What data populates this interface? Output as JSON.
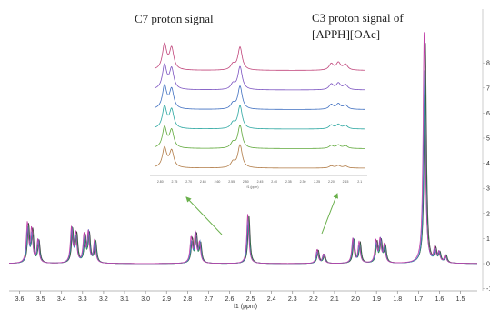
{
  "chart_data": {
    "type": "line",
    "title": "",
    "xlabel": "f1 (ppm)",
    "ylabel": "",
    "x_axis": {
      "min": 1.42,
      "max": 3.65,
      "reversed": true,
      "ticks": [
        "3.6",
        "3.5",
        "3.4",
        "3.3",
        "3.2",
        "3.1",
        "3.0",
        "2.9",
        "2.8",
        "2.7",
        "2.6",
        "2.5",
        "2.4",
        "2.3",
        "2.2",
        "2.1",
        "2.0",
        "1.9",
        "1.8",
        "1.7",
        "1.6",
        "1.5"
      ]
    },
    "y_axis": {
      "side": "right",
      "min": -1,
      "max": 9,
      "ticks": [
        "-1",
        "0",
        "1",
        "2",
        "3",
        "4",
        "5",
        "6",
        "7",
        "8"
      ]
    },
    "series_colors": [
      "#3a3a3a",
      "#2f8f4e",
      "#4a7bd0",
      "#c040a8"
    ],
    "peaks": [
      {
        "ppm": 3.56,
        "height": 1.5
      },
      {
        "ppm": 3.54,
        "height": 1.2
      },
      {
        "ppm": 3.51,
        "height": 0.9
      },
      {
        "ppm": 3.35,
        "height": 1.4
      },
      {
        "ppm": 3.33,
        "height": 1.1
      },
      {
        "ppm": 3.29,
        "height": 1.0
      },
      {
        "ppm": 3.27,
        "height": 1.2
      },
      {
        "ppm": 3.24,
        "height": 0.9
      },
      {
        "ppm": 2.78,
        "height": 0.9
      },
      {
        "ppm": 2.76,
        "height": 1.1
      },
      {
        "ppm": 2.74,
        "height": 0.8
      },
      {
        "ppm": 2.51,
        "height": 1.9
      },
      {
        "ppm": 2.18,
        "height": 0.5
      },
      {
        "ppm": 2.15,
        "height": 0.35
      },
      {
        "ppm": 2.01,
        "height": 1.0
      },
      {
        "ppm": 1.98,
        "height": 0.8
      },
      {
        "ppm": 1.9,
        "height": 0.8
      },
      {
        "ppm": 1.88,
        "height": 0.9
      },
      {
        "ppm": 1.86,
        "height": 0.7
      },
      {
        "ppm": 1.67,
        "height": 8.4
      },
      {
        "ppm": 1.62,
        "height": 0.5
      },
      {
        "ppm": 1.6,
        "height": 0.4
      },
      {
        "ppm": 1.57,
        "height": 0.3
      }
    ],
    "inset": {
      "stack_count": 6,
      "colors": [
        "#b07a45",
        "#5fa83a",
        "#2aa6a0",
        "#3f6fc0",
        "#7a52c0",
        "#c0447a"
      ],
      "x_ticks": [
        "2.80",
        "2.75",
        "2.70",
        "2.65",
        "2.60",
        "2.55",
        "2.50",
        "2.45",
        "2.40",
        "2.35",
        "2.30",
        "2.25",
        "2.20",
        "2.15",
        "2.1"
      ],
      "xlabel": "f1 (ppm)"
    },
    "annotations": [
      {
        "text": "C7 proton signal"
      },
      {
        "text": "C3 proton signal of"
      },
      {
        "text": "[APPH][OAc]"
      }
    ]
  }
}
